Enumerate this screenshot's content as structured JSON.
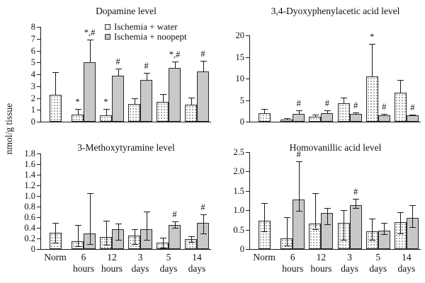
{
  "figure": {
    "ylabel": "nmol/g tissue",
    "legend": {
      "items": [
        {
          "label": "Ischemia + water",
          "series": "water"
        },
        {
          "label": "Ischemia + noopept",
          "series": "noopept"
        }
      ]
    },
    "x_categories": [
      {
        "line1": "Norm",
        "line2": ""
      },
      {
        "line1": "6",
        "line2": "hours"
      },
      {
        "line1": "12",
        "line2": "hours"
      },
      {
        "line1": "3",
        "line2": "days"
      },
      {
        "line1": "5",
        "line2": "days"
      },
      {
        "line1": "14",
        "line2": "days"
      }
    ],
    "colors": {
      "water_fill": "#ffffff",
      "water_dot": "#8f8f8f",
      "noopept_fill": "#c8c8c8",
      "axis": "#1a1a1a"
    }
  },
  "chart_data": [
    {
      "type": "bar",
      "title": "Dopamine level",
      "ylabel": "nmol/g tissue",
      "ylim": [
        0,
        8
      ],
      "ytick_labels": [
        "0",
        "1",
        "2",
        "3",
        "4",
        "5",
        "6",
        "7",
        "8"
      ],
      "categories": [
        "Norm",
        "6 hours",
        "12 hours",
        "3 days",
        "5 days",
        "14 days"
      ],
      "error_bars": "upper",
      "legend_position": "top-center",
      "series": [
        {
          "name": "Ischemia + water",
          "values": [
            2.25,
            0.6,
            0.55,
            1.5,
            1.7,
            1.45
          ],
          "err_high": [
            4.2,
            1.05,
            1.1,
            1.95,
            2.3,
            2.05
          ],
          "err_low": null,
          "annotations": [
            "",
            "*",
            "*",
            "",
            "",
            ""
          ]
        },
        {
          "name": "Ischemia + noopept",
          "values": [
            null,
            5.0,
            3.9,
            3.5,
            4.55,
            4.25
          ],
          "err_high": [
            null,
            6.95,
            4.5,
            4.1,
            5.1,
            5.15
          ],
          "err_low": null,
          "annotations": [
            "",
            "*,#",
            "#",
            "#",
            "*,#",
            "#"
          ]
        }
      ]
    },
    {
      "type": "bar",
      "title": "3,4-Dyoxyphenylacetic acid level",
      "ylabel": "nmol/g tissue",
      "ylim": [
        0,
        20
      ],
      "ytick_labels": [
        "0",
        "5",
        "10",
        "15",
        "20"
      ],
      "categories": [
        "Norm",
        "6 hours",
        "12 hours",
        "3 days",
        "5 days",
        "14 days"
      ],
      "error_bars": "upper",
      "series": [
        {
          "name": "Ischemia + water",
          "values": [
            1.9,
            0.5,
            1.1,
            4.3,
            10.5,
            6.8
          ],
          "err_high": [
            3.0,
            0.9,
            1.7,
            5.6,
            18.0,
            9.6
          ],
          "err_low": null,
          "annotations": [
            "",
            "",
            "",
            "",
            "*",
            ""
          ]
        },
        {
          "name": "Ischemia + noopept",
          "values": [
            null,
            1.8,
            1.9,
            1.8,
            1.4,
            1.5
          ],
          "err_high": [
            null,
            2.6,
            2.6,
            2.2,
            1.8,
            1.7
          ],
          "err_low": null,
          "annotations": [
            "",
            "#",
            "#",
            "#",
            "#",
            "#"
          ]
        }
      ]
    },
    {
      "type": "bar",
      "title": "3-Methoxytyramine level",
      "ylabel": "nmol/g tissue",
      "ylim": [
        0,
        1.8
      ],
      "ytick_labels": [
        "0",
        "0.2",
        "0.4",
        "0.6",
        "0.8",
        "1.0",
        "1.2",
        "1.4",
        "1.6",
        "1.8"
      ],
      "categories": [
        "Norm",
        "6 hours",
        "12 hours",
        "3 days",
        "5 days",
        "14 days"
      ],
      "error_bars": "both",
      "series": [
        {
          "name": "Ischemia + water",
          "values": [
            0.31,
            0.15,
            0.23,
            0.25,
            0.12,
            0.19
          ],
          "err_high": [
            0.5,
            0.46,
            0.54,
            0.38,
            0.21,
            0.24
          ],
          "err_low": [
            0.12,
            0.05,
            0.08,
            0.1,
            0.03,
            0.13
          ],
          "annotations": [
            "",
            "",
            "",
            "",
            "",
            ""
          ]
        },
        {
          "name": "Ischemia + noopept",
          "values": [
            null,
            0.3,
            0.37,
            0.37,
            0.46,
            0.49
          ],
          "err_high": [
            null,
            1.06,
            0.48,
            0.71,
            0.52,
            0.65
          ],
          "err_low": [
            null,
            0.1,
            0.17,
            0.17,
            0.4,
            0.29
          ],
          "annotations": [
            "",
            "",
            "",
            "",
            "#",
            "#"
          ]
        }
      ]
    },
    {
      "type": "bar",
      "title": "Homovanillic acid level",
      "ylabel": "nmol/g tissue",
      "ylim": [
        0,
        2.5
      ],
      "ytick_labels": [
        "0",
        "0.5",
        "1.0",
        "1.5",
        "2.0",
        "2.5"
      ],
      "categories": [
        "Norm",
        "6 hours",
        "12 hours",
        "3 days",
        "5 days",
        "14 days"
      ],
      "error_bars": "both",
      "series": [
        {
          "name": "Ischemia + water",
          "values": [
            0.73,
            0.27,
            0.66,
            0.68,
            0.45,
            0.69
          ],
          "err_high": [
            1.18,
            0.82,
            1.45,
            1.01,
            0.79,
            0.94
          ],
          "err_low": [
            0.45,
            0.1,
            0.52,
            0.24,
            0.24,
            0.41
          ],
          "annotations": [
            "",
            "",
            "",
            "",
            "",
            ""
          ]
        },
        {
          "name": "Ischemia + noopept",
          "values": [
            null,
            1.27,
            0.94,
            1.14,
            0.48,
            0.81
          ],
          "err_high": [
            null,
            2.27,
            1.06,
            1.29,
            0.67,
            1.13
          ],
          "err_low": [
            null,
            0.99,
            0.63,
            1.05,
            0.39,
            0.57
          ],
          "annotations": [
            "",
            "#",
            "",
            "#",
            "",
            ""
          ]
        }
      ]
    }
  ]
}
